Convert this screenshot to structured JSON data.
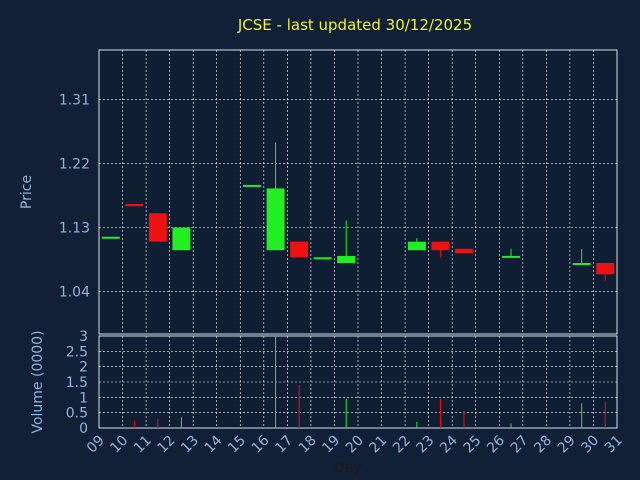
{
  "chart_data": [
    {
      "type": "candlestick",
      "title": "JCSE - last updated 30/12/2025",
      "ylabel": "Price",
      "ylim": [
        0.98,
        1.38
      ],
      "yticks": [
        "1.04",
        "1.13",
        "1.22",
        "1.31"
      ],
      "ytick_values": [
        1.04,
        1.13,
        1.22,
        1.31
      ],
      "grid": true,
      "up_color": "#22ee22",
      "down_color": "#ee1111",
      "candles": [
        {
          "day": 9,
          "open": 1.117,
          "high": 1.117,
          "low": 1.117,
          "close": 1.117
        },
        {
          "day": 10,
          "open": 1.163,
          "high": 1.163,
          "low": 1.16,
          "close": 1.16
        },
        {
          "day": 11,
          "open": 1.15,
          "high": 1.15,
          "low": 1.11,
          "close": 1.11
        },
        {
          "day": 12,
          "open": 1.098,
          "high": 1.13,
          "low": 1.098,
          "close": 1.13
        },
        {
          "day": 15,
          "open": 1.19,
          "high": 1.19,
          "low": 1.19,
          "close": 1.19
        },
        {
          "day": 16,
          "open": 1.098,
          "high": 1.25,
          "low": 1.098,
          "close": 1.185
        },
        {
          "day": 17,
          "open": 1.11,
          "high": 1.11,
          "low": 1.088,
          "close": 1.088
        },
        {
          "day": 18,
          "open": 1.088,
          "high": 1.088,
          "low": 1.088,
          "close": 1.088
        },
        {
          "day": 19,
          "open": 1.08,
          "high": 1.14,
          "low": 1.08,
          "close": 1.09
        },
        {
          "day": 22,
          "open": 1.098,
          "high": 1.115,
          "low": 1.098,
          "close": 1.11
        },
        {
          "day": 23,
          "open": 1.11,
          "high": 1.11,
          "low": 1.088,
          "close": 1.098
        },
        {
          "day": 24,
          "open": 1.1,
          "high": 1.1,
          "low": 1.094,
          "close": 1.094
        },
        {
          "day": 26,
          "open": 1.088,
          "high": 1.1,
          "low": 1.088,
          "close": 1.09
        },
        {
          "day": 29,
          "open": 1.078,
          "high": 1.1,
          "low": 1.078,
          "close": 1.08
        },
        {
          "day": 30,
          "open": 1.08,
          "high": 1.08,
          "low": 1.055,
          "close": 1.064
        }
      ]
    },
    {
      "type": "bar",
      "ylabel": "Volume (0000)",
      "xlabel": "Day",
      "ylim": [
        0,
        3
      ],
      "yticks": [
        "0",
        "0.5",
        "1",
        "1.5",
        "2",
        "2.5",
        "3"
      ],
      "ytick_values": [
        0,
        0.5,
        1,
        1.5,
        2,
        2.5,
        3
      ],
      "categories": [
        "09",
        "10",
        "11",
        "12",
        "13",
        "14",
        "15",
        "16",
        "17",
        "18",
        "19",
        "20",
        "21",
        "22",
        "23",
        "24",
        "25",
        "26",
        "27",
        "28",
        "29",
        "30",
        "31"
      ],
      "bars": [
        {
          "day": 10,
          "value": 0.25,
          "dir": "down"
        },
        {
          "day": 11,
          "value": 0.3,
          "dir": "down"
        },
        {
          "day": 12,
          "value": 0.35,
          "dir": "up"
        },
        {
          "day": 16,
          "value": 3.0,
          "dir": "up"
        },
        {
          "day": 17,
          "value": 1.4,
          "dir": "down"
        },
        {
          "day": 19,
          "value": 0.95,
          "dir": "up"
        },
        {
          "day": 22,
          "value": 0.2,
          "dir": "up"
        },
        {
          "day": 23,
          "value": 0.95,
          "dir": "down"
        },
        {
          "day": 24,
          "value": 0.55,
          "dir": "down"
        },
        {
          "day": 26,
          "value": 0.15,
          "dir": "up"
        },
        {
          "day": 29,
          "value": 0.8,
          "dir": "up"
        },
        {
          "day": 30,
          "value": 0.85,
          "dir": "down"
        }
      ]
    }
  ]
}
